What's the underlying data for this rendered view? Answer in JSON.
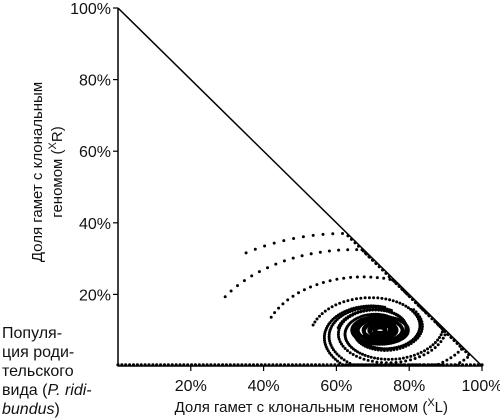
{
  "chart_data": {
    "type": "scatter",
    "title": "",
    "xlabel": {
      "prefix": "Доля гамет с клональным геномом (",
      "sup": "X",
      "suffix": "L)"
    },
    "ylabel": {
      "line1": "Доля гамет с клональным",
      "line2_prefix": "геномом (",
      "line2_sup": "X",
      "line2_suffix": "R)"
    },
    "xlim": [
      0,
      100
    ],
    "ylim": [
      0,
      100
    ],
    "x_ticks": [
      "20%",
      "40%",
      "60%",
      "80%",
      "100%"
    ],
    "x_tick_values": [
      20,
      40,
      60,
      80,
      100
    ],
    "y_ticks": [
      "20%",
      "40%",
      "60%",
      "80%",
      "100%"
    ],
    "y_tick_values": [
      20,
      40,
      60,
      80,
      100
    ],
    "boundary": "x + y = 100",
    "corner_label": {
      "line1": "Популя-",
      "line2": "ция роди-",
      "line3": "тельского",
      "line4_prefix": "вида (",
      "line4_italic": "P. ridi-",
      "line5_italic": "bundus",
      "line5_suffix": ")"
    },
    "attractor": [
      72,
      10
    ],
    "trajectories": [
      {
        "start": [
          40,
          40
        ],
        "loops": 1.15,
        "decay": 0.055,
        "dots": 125
      },
      {
        "start": [
          35,
          23
        ],
        "loops": 1.25,
        "decay": 0.05,
        "dots": 120
      },
      {
        "start": [
          46,
          15
        ],
        "loops": 1.3,
        "decay": 0.048,
        "dots": 110
      },
      {
        "start": [
          56,
          12
        ],
        "loops": 1.6,
        "decay": 0.045,
        "dots": 130
      },
      {
        "start": [
          62,
          11
        ],
        "loops": 2.0,
        "decay": 0.04,
        "dots": 150
      },
      {
        "start": [
          80,
          18
        ],
        "loops": 2.2,
        "decay": 0.04,
        "dots": 150
      },
      {
        "start": [
          88,
          11
        ],
        "loops": 2.4,
        "decay": 0.038,
        "dots": 170
      }
    ],
    "baseline_dots": {
      "y": 0,
      "x_from": 0,
      "x_to": 100,
      "count": 95
    }
  }
}
